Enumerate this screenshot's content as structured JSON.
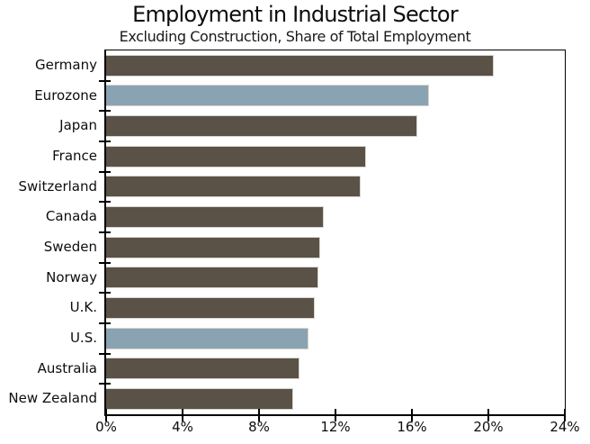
{
  "chart_data": {
    "type": "bar",
    "orientation": "horizontal",
    "title": "Employment in Industrial Sector",
    "subtitle": "Excluding Construction, Share of Total Employment",
    "categories": [
      "Germany",
      "Eurozone",
      "Japan",
      "France",
      "Switzerland",
      "Canada",
      "Sweden",
      "Norway",
      "U.K.",
      "U.S.",
      "Australia",
      "New Zealand"
    ],
    "values": [
      20.3,
      16.9,
      16.3,
      13.6,
      13.3,
      11.4,
      11.2,
      11.1,
      10.9,
      10.6,
      10.1,
      9.8
    ],
    "unit": "%",
    "highlighted_categories": [
      "Eurozone",
      "U.S."
    ],
    "highlighted_indices": [
      1,
      9
    ],
    "xlabel": "",
    "ylabel": "",
    "xlim": [
      0,
      24
    ],
    "x_tick_step": 4,
    "x_tick_labels": [
      "0%",
      "4%",
      "8%",
      "12%",
      "16%",
      "20%",
      "24%"
    ],
    "grid": false,
    "legend": "none",
    "colors": {
      "bar": "#5a5247",
      "highlight": "#8aa3b2",
      "bar_border": "#d8d4cd",
      "axis": "#000000",
      "text": "#000000",
      "background": "#ffffff"
    }
  }
}
